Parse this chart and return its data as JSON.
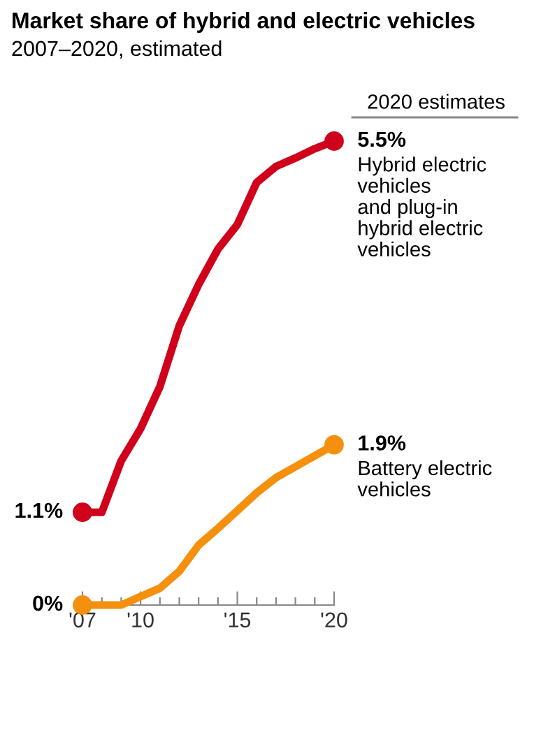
{
  "chart_data": {
    "type": "line",
    "title": "Market share of hybrid and electric vehicles",
    "subtitle": "2007–2020, estimated",
    "legend_title": "2020 estimates",
    "x": [
      2007,
      2008,
      2009,
      2010,
      2011,
      2012,
      2013,
      2014,
      2015,
      2016,
      2017,
      2018,
      2019,
      2020
    ],
    "series": [
      {
        "name": "Hybrid electric\nvehicles\nand plug-in\nhybrid electric\nvehicles",
        "color": "#d0021b",
        "values": [
          1.1,
          1.1,
          1.71,
          2.09,
          2.59,
          3.31,
          3.8,
          4.22,
          4.51,
          5.01,
          5.2,
          5.3,
          5.41,
          5.5
        ],
        "value_labels": [
          "1.1%",
          null,
          null,
          null,
          null,
          null,
          null,
          null,
          null,
          null,
          null,
          null,
          null,
          "5.5%"
        ]
      },
      {
        "name": "Battery electric\nvehicles",
        "color": "#f5900f",
        "values": [
          0,
          0,
          0,
          0.1,
          0.2,
          0.4,
          0.71,
          0.91,
          1.12,
          1.33,
          1.51,
          1.64,
          1.77,
          1.9
        ],
        "value_labels": [
          "0%",
          null,
          null,
          null,
          null,
          null,
          null,
          null,
          null,
          null,
          null,
          null,
          null,
          "1.9%"
        ]
      }
    ],
    "xlim": [
      2007,
      2020
    ],
    "tick_labels": "x",
    "xticks": [
      {
        "value": 2007,
        "label": "'07"
      },
      {
        "value": 2008,
        "label": null
      },
      {
        "value": 2009,
        "label": null
      },
      {
        "value": 2010,
        "label": "'10"
      },
      {
        "value": 2011,
        "label": null
      },
      {
        "value": 2012,
        "label": null
      },
      {
        "value": 2013,
        "label": null
      },
      {
        "value": 2014,
        "label": null
      },
      {
        "value": 2015,
        "label": "'15"
      },
      {
        "value": 2016,
        "label": null
      },
      {
        "value": 2017,
        "label": null
      },
      {
        "value": 2018,
        "label": null
      },
      {
        "value": 2019,
        "label": null
      },
      {
        "value": 2020,
        "label": "'20"
      }
    ],
    "grid": false,
    "legend": false,
    "marker": "none",
    "line_style": "solid"
  }
}
